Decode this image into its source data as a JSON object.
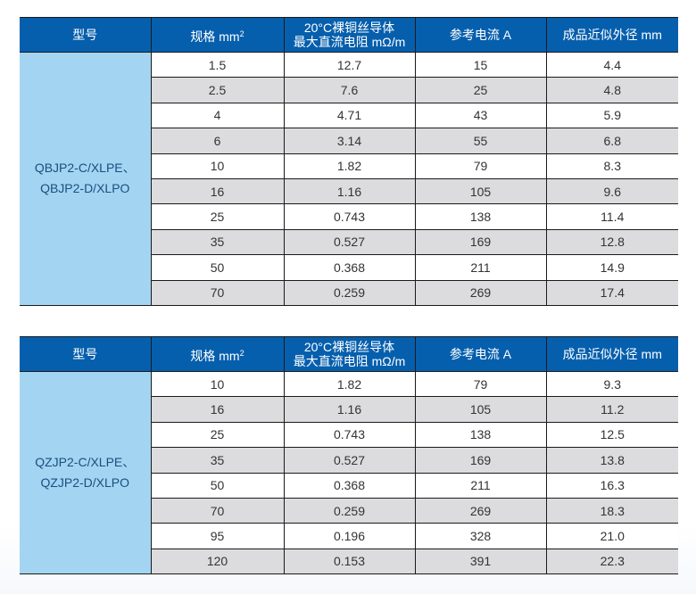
{
  "headers": {
    "model": "型号",
    "spec": "规格 mm",
    "spec_sup": "2",
    "resistance_line1": "20°C裸铜丝导体",
    "resistance_line2": "最大直流电阻 mΩ/m",
    "current": "参考电流 A",
    "diameter": "成品近似外径 mm"
  },
  "colors": {
    "header_bg": "#065fad",
    "model_bg": "#a3d5f2",
    "row_alt_bg": "#dcdcde",
    "model_text": "#1b4e80"
  },
  "tables": [
    {
      "model_line1": "QBJP2-C/XLPE、",
      "model_line2": "QBJP2-D/XLPO",
      "rows": [
        {
          "spec": "1.5",
          "resistance": "12.7",
          "current": "15",
          "diameter": "4.4"
        },
        {
          "spec": "2.5",
          "resistance": "7.6",
          "current": "25",
          "diameter": "4.8"
        },
        {
          "spec": "4",
          "resistance": "4.71",
          "current": "43",
          "diameter": "5.9"
        },
        {
          "spec": "6",
          "resistance": "3.14",
          "current": "55",
          "diameter": "6.8"
        },
        {
          "spec": "10",
          "resistance": "1.82",
          "current": "79",
          "diameter": "8.3"
        },
        {
          "spec": "16",
          "resistance": "1.16",
          "current": "105",
          "diameter": "9.6"
        },
        {
          "spec": "25",
          "resistance": "0.743",
          "current": "138",
          "diameter": "11.4"
        },
        {
          "spec": "35",
          "resistance": "0.527",
          "current": "169",
          "diameter": "12.8"
        },
        {
          "spec": "50",
          "resistance": "0.368",
          "current": "211",
          "diameter": "14.9"
        },
        {
          "spec": "70",
          "resistance": "0.259",
          "current": "269",
          "diameter": "17.4"
        }
      ]
    },
    {
      "model_line1": "QZJP2-C/XLPE、",
      "model_line2": "QZJP2-D/XLPO",
      "rows": [
        {
          "spec": "10",
          "resistance": "1.82",
          "current": "79",
          "diameter": "9.3"
        },
        {
          "spec": "16",
          "resistance": "1.16",
          "current": "105",
          "diameter": "11.2"
        },
        {
          "spec": "25",
          "resistance": "0.743",
          "current": "138",
          "diameter": "12.5"
        },
        {
          "spec": "35",
          "resistance": "0.527",
          "current": "169",
          "diameter": "13.8"
        },
        {
          "spec": "50",
          "resistance": "0.368",
          "current": "211",
          "diameter": "16.3"
        },
        {
          "spec": "70",
          "resistance": "0.259",
          "current": "269",
          "diameter": "18.3"
        },
        {
          "spec": "95",
          "resistance": "0.196",
          "current": "328",
          "diameter": "21.0"
        },
        {
          "spec": "120",
          "resistance": "0.153",
          "current": "391",
          "diameter": "22.3"
        }
      ]
    }
  ]
}
